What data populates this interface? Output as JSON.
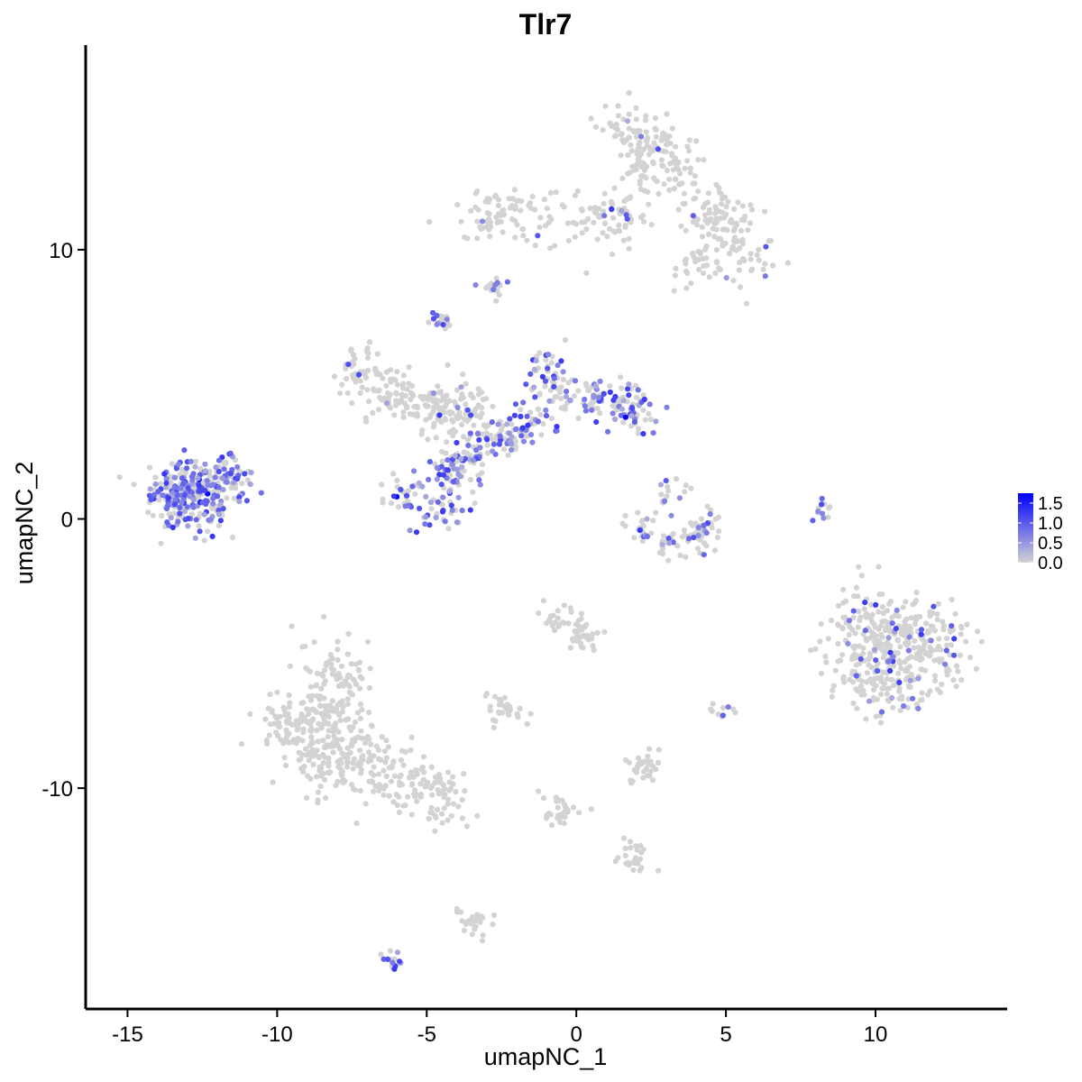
{
  "chart_data": {
    "type": "scatter",
    "title": "Tlr7",
    "xlabel": "umapNC_1",
    "ylabel": "umapNC_2",
    "xlim": [
      -16.4,
      14.4
    ],
    "ylim": [
      -18.2,
      17.6
    ],
    "x_ticks": [
      {
        "value": -15,
        "label": "-15"
      },
      {
        "value": -10,
        "label": "-10"
      },
      {
        "value": -5,
        "label": "-5"
      },
      {
        "value": 0,
        "label": "0"
      },
      {
        "value": 5,
        "label": "5"
      },
      {
        "value": 10,
        "label": "10"
      }
    ],
    "y_ticks": [
      {
        "value": -10,
        "label": "-10"
      },
      {
        "value": 0,
        "label": "0"
      },
      {
        "value": 10,
        "label": "10"
      }
    ],
    "color_scale": {
      "low_color": "#D3D3D3",
      "high_color": "#0000FF",
      "range": [
        0,
        1.75
      ],
      "legend_placement": "right",
      "ticks": [
        {
          "value": 1.5,
          "label": "1.5"
        },
        {
          "value": 1.0,
          "label": "1.0"
        },
        {
          "value": 0.5,
          "label": "0.5"
        },
        {
          "value": 0.0,
          "label": "0.0"
        }
      ]
    },
    "clusters": [
      {
        "id": "top-right",
        "points": [
          [
            1.5,
            14.5
          ],
          [
            2.5,
            14
          ],
          [
            2.9,
            13.4
          ],
          [
            2.2,
            13
          ],
          [
            3.4,
            12.7
          ],
          [
            4.4,
            11.5
          ],
          [
            5.1,
            11.2
          ],
          [
            4.6,
            10.6
          ],
          [
            5.7,
            9.6
          ],
          [
            4,
            9.4
          ],
          [
            -2.7,
            11.5
          ],
          [
            -3.2,
            11.1
          ],
          [
            -1.6,
            11.3
          ],
          [
            -0.1,
            11.1
          ],
          [
            0.9,
            11
          ],
          [
            1.8,
            11.4
          ]
        ],
        "spread": 0.55,
        "count": 460,
        "expr": 0.04
      },
      {
        "id": "left",
        "points": [
          [
            -13.6,
            1.1
          ],
          [
            -12.9,
            1.2
          ],
          [
            -12.2,
            1
          ],
          [
            -11.7,
            1.5
          ],
          [
            -13.2,
            0.5
          ],
          [
            -12.5,
            0.4
          ]
        ],
        "spread": 0.5,
        "count": 320,
        "expr": 0.55
      },
      {
        "id": "center-upper",
        "points": [
          [
            -7.3,
            5.5
          ],
          [
            -6.3,
            4.7
          ],
          [
            -5.1,
            4.1
          ],
          [
            -4.4,
            3.9
          ],
          [
            -3.7,
            4.3
          ]
        ],
        "spread": 0.45,
        "count": 220,
        "expr": 0.03
      },
      {
        "id": "center-arm",
        "points": [
          [
            -5.6,
            0.8
          ],
          [
            -4.5,
            0.3
          ],
          [
            -4.3,
            1.6
          ],
          [
            -3.7,
            2
          ],
          [
            -3.2,
            2.9
          ],
          [
            -2.3,
            3.1
          ],
          [
            -1.6,
            3.6
          ],
          [
            -1,
            5.6
          ],
          [
            -0.3,
            4.5
          ],
          [
            0.6,
            4.4
          ],
          [
            1.5,
            4.6
          ],
          [
            2.2,
            4
          ]
        ],
        "spread": 0.4,
        "count": 420,
        "expr": 0.45
      },
      {
        "id": "lower-left",
        "points": [
          [
            -9.6,
            -7.8
          ],
          [
            -8.2,
            -7.2
          ],
          [
            -8.5,
            -9.1
          ],
          [
            -8.1,
            -5.9
          ],
          [
            -7.4,
            -8.6
          ],
          [
            -6.2,
            -9.6
          ],
          [
            -4.7,
            -10.2
          ]
        ],
        "spread": 0.6,
        "count": 480,
        "expr": 0.0
      },
      {
        "id": "right",
        "points": [
          [
            9.5,
            -5.4
          ],
          [
            10.4,
            -4.4
          ],
          [
            11.4,
            -4.2
          ],
          [
            10.1,
            -6.3
          ],
          [
            11.2,
            -6.1
          ],
          [
            9.8,
            -3.6
          ],
          [
            12,
            -4.8
          ]
        ],
        "spread": 0.65,
        "count": 430,
        "expr": 0.1
      },
      {
        "id": "lower-middle",
        "points": [
          [
            -0.6,
            -3.8
          ],
          [
            0.2,
            -4.3
          ],
          [
            -2.4,
            -7
          ],
          [
            2.3,
            -9.2
          ],
          [
            -0.6,
            -10.8
          ],
          [
            1.9,
            -12.6
          ],
          [
            -3.4,
            -15
          ]
        ],
        "spread": 0.35,
        "count": 200,
        "expr": 0.0
      },
      {
        "id": "ring",
        "points": [
          [
            2.1,
            -0.4
          ],
          [
            3.1,
            -0.9
          ],
          [
            4.1,
            -0.7
          ],
          [
            3.1,
            0.8
          ],
          [
            4.3,
            -0.1
          ]
        ],
        "spread": 0.3,
        "count": 110,
        "expr": 0.2
      },
      {
        "id": "small-satellites",
        "points": [
          [
            -4.5,
            7.4
          ],
          [
            -2.8,
            8.6
          ],
          [
            8.2,
            0.3
          ],
          [
            5,
            -7.2
          ],
          [
            -6.1,
            -16.3
          ]
        ],
        "spread": 0.2,
        "count": 70,
        "expr": 0.35
      }
    ]
  }
}
